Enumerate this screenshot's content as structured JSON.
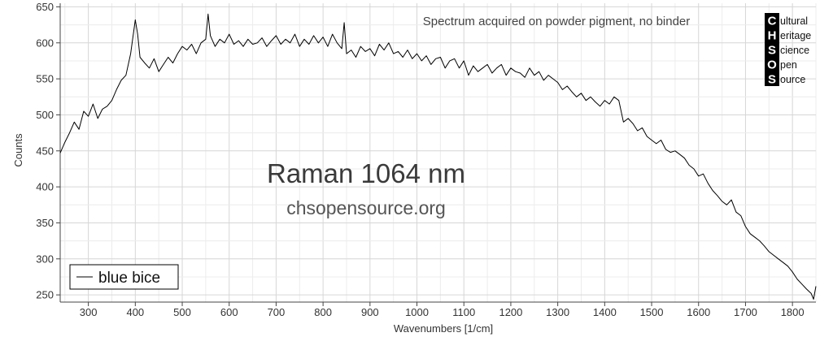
{
  "chart_data": {
    "type": "line",
    "xlabel": "Wavenumbers [1/cm]",
    "ylabel": "Counts",
    "xlim": [
      240,
      1850
    ],
    "ylim": [
      240,
      655
    ],
    "xticks": [
      300,
      400,
      500,
      600,
      700,
      800,
      900,
      1000,
      1100,
      1200,
      1300,
      1400,
      1500,
      1600,
      1700,
      1800
    ],
    "yticks": [
      250,
      300,
      350,
      400,
      450,
      500,
      550,
      600,
      650
    ],
    "grid": true,
    "legend_position": "bottom-left",
    "series": [
      {
        "name": "blue bice",
        "color": "#000000",
        "points": [
          [
            240,
            447
          ],
          [
            250,
            462
          ],
          [
            260,
            475
          ],
          [
            270,
            490
          ],
          [
            280,
            480
          ],
          [
            290,
            505
          ],
          [
            300,
            498
          ],
          [
            310,
            515
          ],
          [
            320,
            495
          ],
          [
            330,
            508
          ],
          [
            340,
            512
          ],
          [
            350,
            520
          ],
          [
            360,
            535
          ],
          [
            370,
            548
          ],
          [
            380,
            555
          ],
          [
            390,
            585
          ],
          [
            400,
            632
          ],
          [
            405,
            612
          ],
          [
            410,
            580
          ],
          [
            420,
            572
          ],
          [
            430,
            565
          ],
          [
            440,
            578
          ],
          [
            450,
            560
          ],
          [
            460,
            570
          ],
          [
            470,
            580
          ],
          [
            480,
            572
          ],
          [
            490,
            585
          ],
          [
            500,
            595
          ],
          [
            510,
            590
          ],
          [
            520,
            598
          ],
          [
            530,
            585
          ],
          [
            540,
            600
          ],
          [
            550,
            605
          ],
          [
            555,
            640
          ],
          [
            560,
            610
          ],
          [
            570,
            595
          ],
          [
            580,
            605
          ],
          [
            590,
            600
          ],
          [
            600,
            612
          ],
          [
            610,
            598
          ],
          [
            620,
            603
          ],
          [
            630,
            595
          ],
          [
            640,
            605
          ],
          [
            650,
            598
          ],
          [
            660,
            600
          ],
          [
            670,
            607
          ],
          [
            680,
            595
          ],
          [
            690,
            603
          ],
          [
            700,
            610
          ],
          [
            710,
            598
          ],
          [
            720,
            605
          ],
          [
            730,
            600
          ],
          [
            740,
            612
          ],
          [
            750,
            595
          ],
          [
            760,
            605
          ],
          [
            770,
            598
          ],
          [
            780,
            610
          ],
          [
            790,
            600
          ],
          [
            800,
            608
          ],
          [
            810,
            595
          ],
          [
            820,
            612
          ],
          [
            830,
            600
          ],
          [
            840,
            592
          ],
          [
            845,
            628
          ],
          [
            850,
            585
          ],
          [
            860,
            590
          ],
          [
            870,
            580
          ],
          [
            880,
            595
          ],
          [
            890,
            588
          ],
          [
            900,
            592
          ],
          [
            910,
            582
          ],
          [
            920,
            598
          ],
          [
            930,
            590
          ],
          [
            940,
            600
          ],
          [
            950,
            585
          ],
          [
            960,
            588
          ],
          [
            970,
            580
          ],
          [
            980,
            590
          ],
          [
            990,
            578
          ],
          [
            1000,
            585
          ],
          [
            1010,
            575
          ],
          [
            1020,
            582
          ],
          [
            1030,
            570
          ],
          [
            1040,
            578
          ],
          [
            1050,
            580
          ],
          [
            1060,
            565
          ],
          [
            1070,
            575
          ],
          [
            1080,
            578
          ],
          [
            1090,
            565
          ],
          [
            1100,
            575
          ],
          [
            1110,
            555
          ],
          [
            1120,
            568
          ],
          [
            1130,
            560
          ],
          [
            1140,
            565
          ],
          [
            1150,
            570
          ],
          [
            1160,
            558
          ],
          [
            1170,
            565
          ],
          [
            1180,
            570
          ],
          [
            1190,
            555
          ],
          [
            1200,
            565
          ],
          [
            1210,
            560
          ],
          [
            1220,
            558
          ],
          [
            1230,
            552
          ],
          [
            1240,
            565
          ],
          [
            1250,
            555
          ],
          [
            1260,
            560
          ],
          [
            1270,
            548
          ],
          [
            1280,
            555
          ],
          [
            1290,
            550
          ],
          [
            1300,
            545
          ],
          [
            1310,
            535
          ],
          [
            1320,
            540
          ],
          [
            1330,
            532
          ],
          [
            1340,
            525
          ],
          [
            1350,
            530
          ],
          [
            1360,
            520
          ],
          [
            1370,
            525
          ],
          [
            1380,
            518
          ],
          [
            1390,
            512
          ],
          [
            1400,
            520
          ],
          [
            1410,
            515
          ],
          [
            1420,
            525
          ],
          [
            1430,
            520
          ],
          [
            1440,
            490
          ],
          [
            1450,
            495
          ],
          [
            1460,
            488
          ],
          [
            1470,
            478
          ],
          [
            1480,
            482
          ],
          [
            1490,
            470
          ],
          [
            1500,
            465
          ],
          [
            1510,
            460
          ],
          [
            1520,
            465
          ],
          [
            1530,
            452
          ],
          [
            1540,
            448
          ],
          [
            1550,
            450
          ],
          [
            1560,
            445
          ],
          [
            1570,
            440
          ],
          [
            1580,
            430
          ],
          [
            1590,
            425
          ],
          [
            1600,
            415
          ],
          [
            1610,
            418
          ],
          [
            1620,
            405
          ],
          [
            1630,
            395
          ],
          [
            1640,
            388
          ],
          [
            1650,
            380
          ],
          [
            1660,
            375
          ],
          [
            1670,
            382
          ],
          [
            1680,
            365
          ],
          [
            1690,
            360
          ],
          [
            1700,
            345
          ],
          [
            1710,
            335
          ],
          [
            1720,
            330
          ],
          [
            1730,
            325
          ],
          [
            1740,
            318
          ],
          [
            1750,
            310
          ],
          [
            1760,
            305
          ],
          [
            1770,
            300
          ],
          [
            1780,
            295
          ],
          [
            1790,
            290
          ],
          [
            1800,
            282
          ],
          [
            1810,
            272
          ],
          [
            1820,
            265
          ],
          [
            1830,
            258
          ],
          [
            1840,
            252
          ],
          [
            1845,
            244
          ],
          [
            1850,
            262
          ]
        ]
      }
    ],
    "annotations": [
      "Spectrum acquired on powder pigment, no binder",
      "Raman 1064 nm",
      "chsopensource.org"
    ]
  },
  "logo": {
    "letters": [
      "C",
      "H",
      "S",
      "O",
      "S"
    ],
    "words": [
      "ultural",
      "eritage",
      "cience",
      "pen",
      "ource"
    ]
  }
}
